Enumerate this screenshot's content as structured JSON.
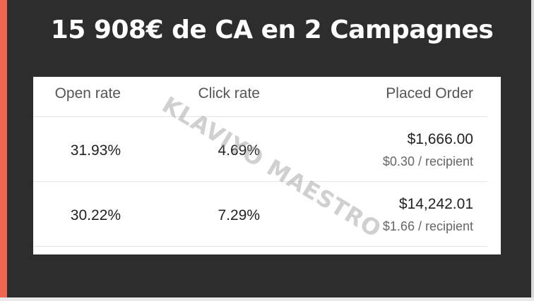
{
  "title": "15 908€ de CA en 2 Campagnes",
  "colors": {
    "accent": "#ef6552",
    "background": "#2e2d2e",
    "card": "#ffffff"
  },
  "watermark": "KLAVIYO MAESTRO",
  "table": {
    "headers": [
      "Open rate",
      "Click rate",
      "Placed Order"
    ],
    "rows": [
      {
        "open_rate": "31.93%",
        "click_rate": "4.69%",
        "placed_order": "$1,666.00",
        "per_recipient": "$0.30 / recipient"
      },
      {
        "open_rate": "30.22%",
        "click_rate": "7.29%",
        "placed_order": "$14,242.01",
        "per_recipient": "$1.66 / recipient"
      }
    ]
  }
}
